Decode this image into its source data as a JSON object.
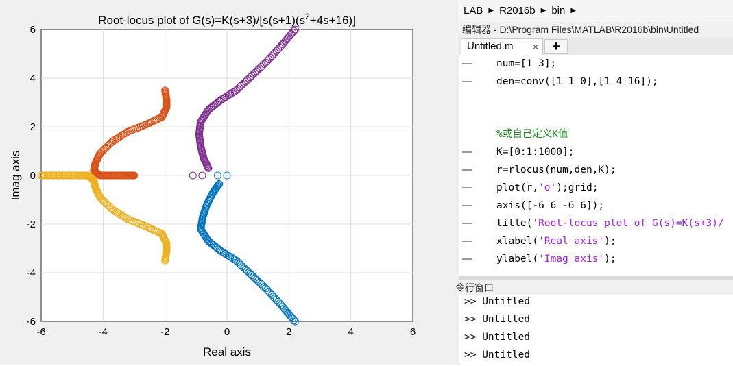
{
  "chart_data": {
    "type": "scatter",
    "title_parts": {
      "pre": "Root-locus plot of G(s)=K(s+3)/[s(s+1)(s",
      "sup": "2",
      "post": "+4s+16)]"
    },
    "xlabel": "Real axis",
    "ylabel": "Imag axis",
    "xlim": [
      -6,
      6
    ],
    "ylim": [
      -6,
      6
    ],
    "xticks": [
      "-6",
      "-4",
      "-2",
      "0",
      "2",
      "4",
      "6"
    ],
    "yticks": [
      "6",
      "4",
      "2",
      "0",
      "-2",
      "-4",
      "-6"
    ],
    "grid": true,
    "marker": "o",
    "series": [
      {
        "color": "#0072bd",
        "points": [
          [
            -0.25,
            -0.35
          ],
          [
            -0.45,
            -0.7
          ],
          [
            -0.65,
            -1.2
          ],
          [
            -0.78,
            -1.7
          ],
          [
            -0.85,
            -2.2
          ],
          [
            -0.6,
            -2.7
          ],
          [
            -0.2,
            -3.1
          ],
          [
            0.3,
            -3.5
          ],
          [
            0.8,
            -4.1
          ],
          [
            1.3,
            -4.7
          ],
          [
            1.8,
            -5.4
          ],
          [
            2.2,
            -6.0
          ]
        ]
      },
      {
        "color": "#d95319",
        "points": [
          [
            -3.0,
            0
          ],
          [
            -3.2,
            0
          ],
          [
            -3.5,
            0
          ],
          [
            -3.8,
            0
          ],
          [
            -4.1,
            0
          ],
          [
            -4.3,
            0.2
          ],
          [
            -4.25,
            0.5
          ],
          [
            -4.1,
            0.9
          ],
          [
            -3.7,
            1.4
          ],
          [
            -3.2,
            1.8
          ],
          [
            -2.6,
            2.1
          ],
          [
            -2.1,
            2.4
          ],
          [
            -1.95,
            2.8
          ],
          [
            -1.95,
            3.1
          ],
          [
            -2.0,
            3.5
          ]
        ]
      },
      {
        "color": "#edb120",
        "points": [
          [
            -6.0,
            0
          ],
          [
            -5.6,
            0
          ],
          [
            -5.2,
            0
          ],
          [
            -4.8,
            0
          ],
          [
            -4.5,
            0
          ],
          [
            -4.3,
            -0.2
          ],
          [
            -4.25,
            -0.5
          ],
          [
            -4.1,
            -0.9
          ],
          [
            -3.7,
            -1.4
          ],
          [
            -3.2,
            -1.8
          ],
          [
            -2.6,
            -2.1
          ],
          [
            -2.1,
            -2.4
          ],
          [
            -1.95,
            -2.8
          ],
          [
            -1.95,
            -3.1
          ],
          [
            -2.0,
            -3.5
          ]
        ]
      },
      {
        "color": "#7e2f8e",
        "points": [
          [
            -0.6,
            0.3
          ],
          [
            -0.75,
            0.7
          ],
          [
            -0.85,
            1.2
          ],
          [
            -0.9,
            1.7
          ],
          [
            -0.85,
            2.2
          ],
          [
            -0.6,
            2.7
          ],
          [
            -0.2,
            3.1
          ],
          [
            0.3,
            3.5
          ],
          [
            0.8,
            4.1
          ],
          [
            1.3,
            4.7
          ],
          [
            1.8,
            5.4
          ],
          [
            2.2,
            6.0
          ]
        ]
      }
    ],
    "poles_zeros": [
      {
        "x": -1.1,
        "y": 0,
        "color": "#7e2f8e"
      },
      {
        "x": -0.8,
        "y": 0,
        "color": "#7e2f8e"
      },
      {
        "x": -0.3,
        "y": 0,
        "color": "#0072bd"
      },
      {
        "x": 0.0,
        "y": 0,
        "color": "#0072bd"
      }
    ]
  },
  "pathbar": {
    "items": [
      "LAB",
      "R2016b",
      "bin"
    ]
  },
  "editor": {
    "title": "编辑器 - D:\\Program Files\\MATLAB\\R2016b\\bin\\Untitled",
    "tab_label": "Untitled.m",
    "tab_close": "×",
    "tab_add": "+",
    "lines": [
      {
        "dash": "—",
        "parts": [
          {
            "t": "num=[1 3];",
            "c": ""
          }
        ]
      },
      {
        "dash": "—",
        "parts": [
          {
            "t": "den=conv([1 1 0],[1 4 16]);",
            "c": ""
          }
        ]
      },
      {
        "dash": "",
        "parts": []
      },
      {
        "dash": "",
        "parts": [
          {
            "t": "%或自己定义K值",
            "c": "cmt"
          }
        ]
      },
      {
        "dash": "—",
        "parts": [
          {
            "t": "K=[0:1:1000];",
            "c": ""
          }
        ]
      },
      {
        "dash": "—",
        "parts": [
          {
            "t": "r=rlocus(num,den,K);",
            "c": ""
          }
        ]
      },
      {
        "dash": "—",
        "parts": [
          {
            "t": "plot(r,",
            "c": ""
          },
          {
            "t": "'o'",
            "c": "str"
          },
          {
            "t": ");grid;",
            "c": ""
          }
        ]
      },
      {
        "dash": "—",
        "parts": [
          {
            "t": "axis([-6 6 -6 6]);",
            "c": ""
          }
        ]
      },
      {
        "dash": "—",
        "parts": [
          {
            "t": "title(",
            "c": ""
          },
          {
            "t": "'Root-locus plot of G(s)=K(s+3)/",
            "c": "str"
          }
        ]
      },
      {
        "dash": "—",
        "parts": [
          {
            "t": "xlabel(",
            "c": ""
          },
          {
            "t": "'Real axis'",
            "c": "str"
          },
          {
            "t": ");",
            "c": ""
          }
        ]
      },
      {
        "dash": "—",
        "parts": [
          {
            "t": "ylabel(",
            "c": ""
          },
          {
            "t": "'Imag axis'",
            "c": "str"
          },
          {
            "t": ");",
            "c": ""
          }
        ]
      }
    ]
  },
  "command_window": {
    "title": "令行窗口",
    "lines": [
      ">> Untitled",
      ">> Untitled",
      ">> Untitled",
      ">> Untitled"
    ]
  }
}
